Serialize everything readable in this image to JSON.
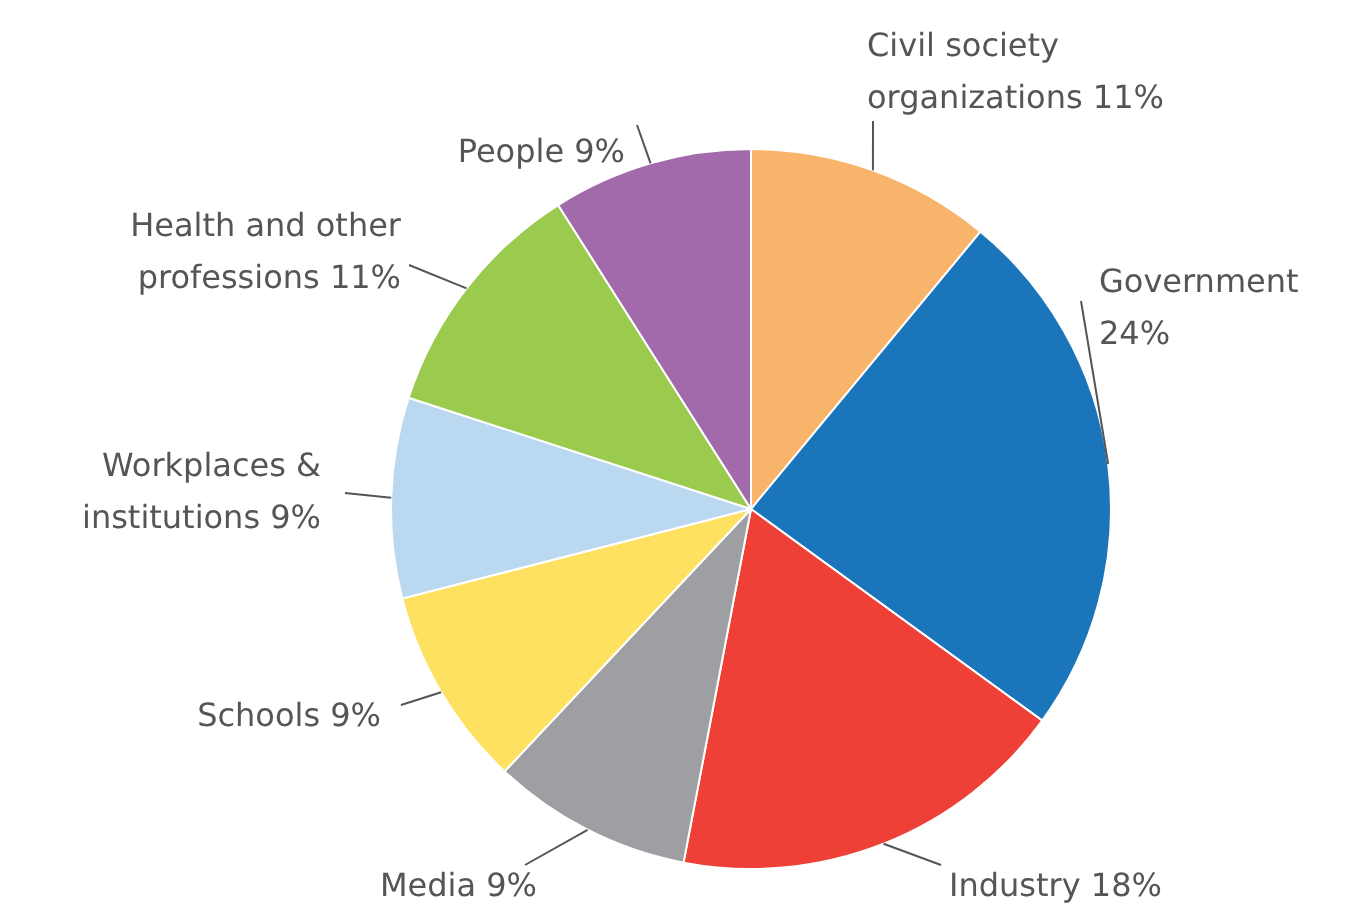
{
  "chart_data": {
    "type": "pie",
    "categories": [
      "Civil society organizations",
      "Government",
      "Industry",
      "Media",
      "Schools",
      "Workplaces & institutions",
      "Health and other professions",
      "People"
    ],
    "values": [
      11,
      24,
      18,
      9,
      9,
      9,
      11,
      9
    ],
    "value_labels": [
      "11%",
      "24%",
      "18%",
      "9%",
      "9%",
      "9%",
      "11%",
      "9%"
    ],
    "colors": [
      "#f9b46b",
      "#1a75bb",
      "#ee4036",
      "#9d9fa2",
      "#fee161",
      "#bad8f0",
      "#9acb4f",
      "#a26aab"
    ]
  }
}
